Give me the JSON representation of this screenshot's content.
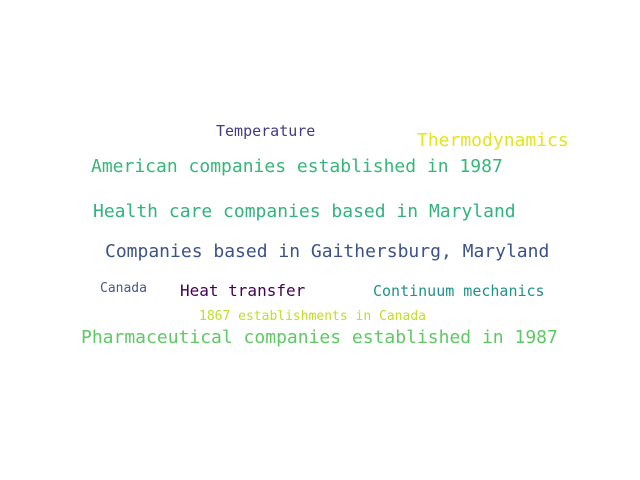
{
  "word_cloud": {
    "words": [
      {
        "id": "temperature",
        "text": "Temperature",
        "color": "#443a83"
      },
      {
        "id": "thermo",
        "text": "Thermodynamics",
        "color": "#e5e419"
      },
      {
        "id": "american",
        "text": "American companies established in 1987",
        "color": "#35b779"
      },
      {
        "id": "healthcare",
        "text": "Health care companies based in Maryland",
        "color": "#2fb47c"
      },
      {
        "id": "gaithersburg",
        "text": "Companies based in Gaithersburg, Maryland",
        "color": "#3b528b"
      },
      {
        "id": "canada",
        "text": "Canada",
        "color": "#46598b"
      },
      {
        "id": "heat",
        "text": "Heat transfer",
        "color": "#440154"
      },
      {
        "id": "continuum",
        "text": "Continuum mechanics",
        "color": "#21918c"
      },
      {
        "id": "est1867",
        "text": "1867 establishments in Canada",
        "color": "#bddf26"
      },
      {
        "id": "pharma",
        "text": "Pharmaceutical companies established in 1987",
        "color": "#5ec962"
      }
    ]
  }
}
